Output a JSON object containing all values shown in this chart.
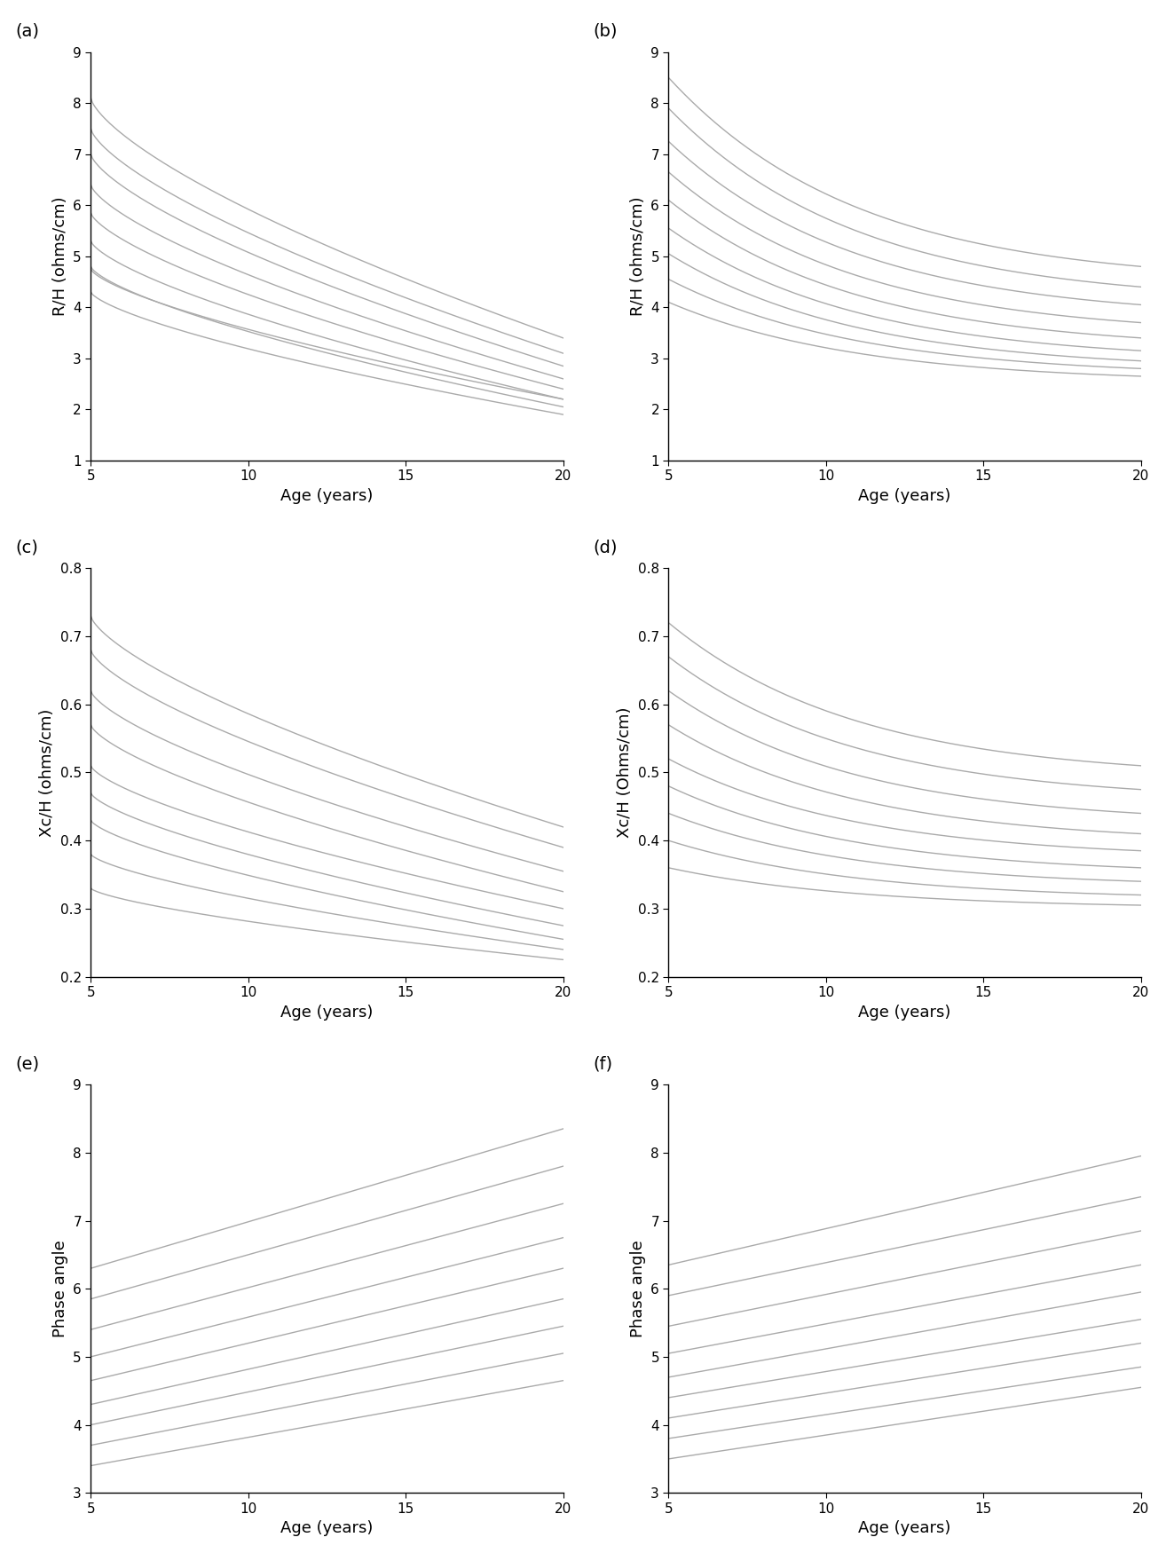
{
  "panels": [
    {
      "label": "(a)",
      "ylabel": "R/H (ohms/cm)",
      "ylim": [
        1,
        9
      ],
      "yticks": [
        1,
        2,
        3,
        4,
        5,
        6,
        7,
        8,
        9
      ],
      "curve_type": "mild_curved_decay",
      "start_vals": [
        8.1,
        7.5,
        7.0,
        6.4,
        5.85,
        5.3,
        4.8,
        4.3,
        4.75
      ],
      "end_vals": [
        3.4,
        3.1,
        2.85,
        2.6,
        2.4,
        2.2,
        2.05,
        1.9,
        2.2
      ]
    },
    {
      "label": "(b)",
      "ylabel": "R/H (ohms/cm)",
      "ylim": [
        1,
        9
      ],
      "yticks": [
        1,
        2,
        3,
        4,
        5,
        6,
        7,
        8,
        9
      ],
      "curve_type": "strong_curved_decay",
      "start_vals": [
        8.5,
        7.9,
        7.25,
        6.65,
        6.1,
        5.55,
        5.05,
        4.55,
        4.1
      ],
      "end_vals": [
        4.8,
        4.4,
        4.05,
        3.7,
        3.4,
        3.15,
        2.95,
        2.8,
        2.65
      ]
    },
    {
      "label": "(c)",
      "ylabel": "Xc/H (ohms/cm)",
      "ylim": [
        0.2,
        0.8
      ],
      "yticks": [
        0.2,
        0.3,
        0.4,
        0.5,
        0.6,
        0.7,
        0.8
      ],
      "curve_type": "mild_curved_decay",
      "start_vals": [
        0.73,
        0.68,
        0.62,
        0.57,
        0.51,
        0.47,
        0.43,
        0.38,
        0.33
      ],
      "end_vals": [
        0.42,
        0.39,
        0.355,
        0.325,
        0.3,
        0.275,
        0.255,
        0.24,
        0.225
      ]
    },
    {
      "label": "(d)",
      "ylabel": "Xc/H (Ohms/cm)",
      "ylim": [
        0.2,
        0.8
      ],
      "yticks": [
        0.2,
        0.3,
        0.4,
        0.5,
        0.6,
        0.7,
        0.8
      ],
      "curve_type": "strong_curved_decay",
      "start_vals": [
        0.72,
        0.67,
        0.62,
        0.57,
        0.52,
        0.48,
        0.44,
        0.4,
        0.36
      ],
      "end_vals": [
        0.51,
        0.475,
        0.44,
        0.41,
        0.385,
        0.36,
        0.34,
        0.32,
        0.305
      ]
    },
    {
      "label": "(e)",
      "ylabel": "Phase angle",
      "ylim": [
        3,
        9
      ],
      "yticks": [
        3,
        4,
        5,
        6,
        7,
        8,
        9
      ],
      "curve_type": "linear_increase",
      "start_vals": [
        6.3,
        5.85,
        5.4,
        5.0,
        4.65,
        4.3,
        4.0,
        3.7,
        3.4
      ],
      "end_vals": [
        8.35,
        7.8,
        7.25,
        6.75,
        6.3,
        5.85,
        5.45,
        5.05,
        4.65
      ]
    },
    {
      "label": "(f)",
      "ylabel": "Phase angle",
      "ylim": [
        3,
        9
      ],
      "yticks": [
        3,
        4,
        5,
        6,
        7,
        8,
        9
      ],
      "curve_type": "linear_increase",
      "start_vals": [
        6.35,
        5.9,
        5.45,
        5.05,
        4.7,
        4.4,
        4.1,
        3.8,
        3.5
      ],
      "end_vals": [
        7.95,
        7.35,
        6.85,
        6.35,
        5.95,
        5.55,
        5.2,
        4.85,
        4.55
      ]
    }
  ],
  "xlabel": "Age (years)",
  "xticks": [
    5,
    10,
    15,
    20
  ],
  "xmin": 5,
  "xmax": 20,
  "line_color": "#aaaaaa",
  "line_width": 1.0,
  "background_color": "#ffffff",
  "label_fontsize": 13,
  "tick_fontsize": 11,
  "panel_label_fontsize": 14
}
